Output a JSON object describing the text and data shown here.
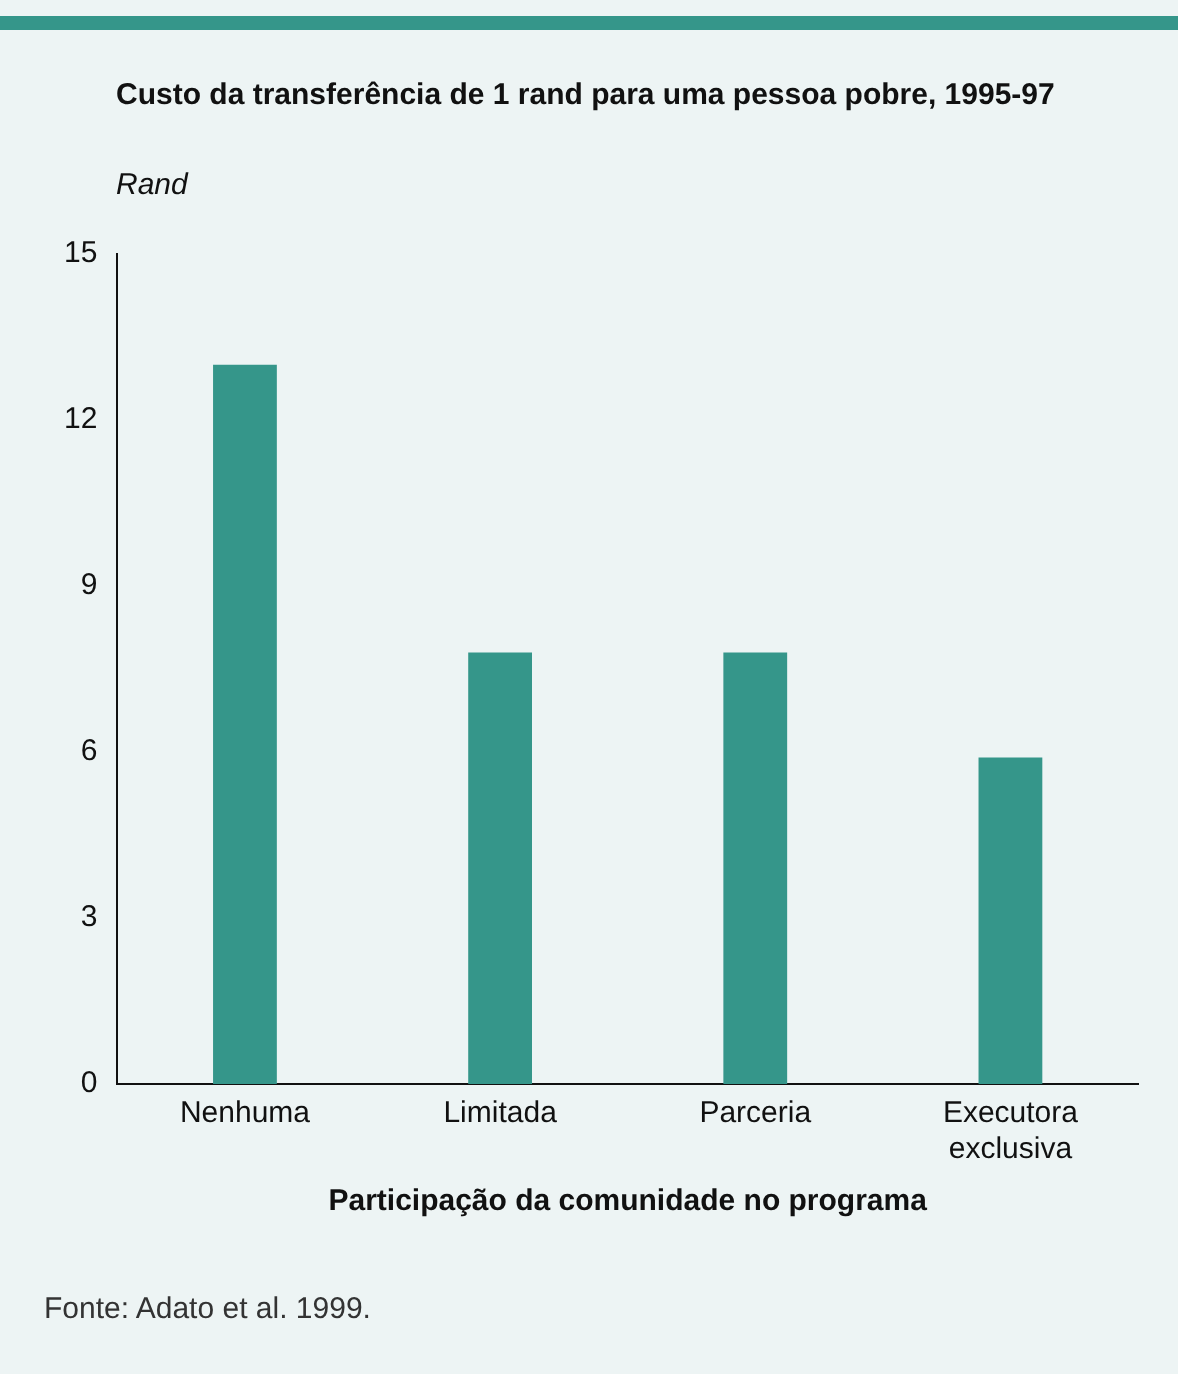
{
  "chart_data": {
    "type": "bar",
    "title": "Custo da transferência de 1 rand para uma pessoa pobre, 1995-97",
    "subtitle": "Rand",
    "xlabel": "Participação da comunidade no programa",
    "categories": [
      "Nenhuma",
      "Limitada",
      "Parceria",
      "Executora exclusiva"
    ],
    "values": [
      13,
      7.8,
      7.8,
      5.9
    ],
    "color": "#35968a",
    "ylim": [
      0,
      15
    ],
    "yticks": [
      0,
      3,
      6,
      9,
      12,
      15
    ],
    "grid": false,
    "legend": false,
    "annotations": [
      "Fonte: Adato et al. 1999."
    ]
  }
}
